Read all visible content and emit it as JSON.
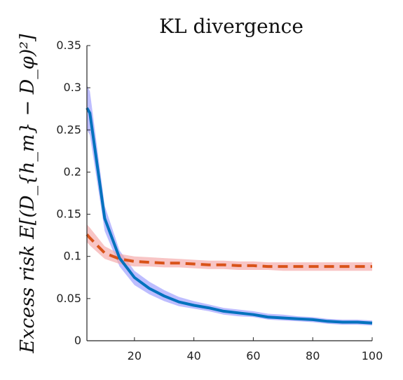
{
  "chart_data": {
    "type": "line",
    "title": "KL divergence",
    "ylabel": "Excess risk E[(D_{h_m} − D_φ)²]",
    "xlabel": "",
    "xlim": [
      4,
      100
    ],
    "ylim": [
      0,
      0.35
    ],
    "x_ticks": [
      20,
      40,
      60,
      80,
      100
    ],
    "y_ticks": [
      0,
      0.05,
      0.1,
      0.15,
      0.2,
      0.25,
      0.3,
      0.35
    ],
    "x_tick_labels": [
      "20",
      "40",
      "60",
      "80",
      "100"
    ],
    "y_tick_labels": [
      "0",
      "0.05",
      "0.1",
      "0.15",
      "0.2",
      "0.25",
      "0.3",
      "0.35"
    ],
    "grid": false,
    "legend": "none",
    "series": [
      {
        "style": "solid",
        "color": "#0072BD",
        "band_color": "#9999ff",
        "x": [
          4,
          5,
          10,
          15,
          20,
          25,
          30,
          35,
          40,
          45,
          50,
          55,
          60,
          65,
          70,
          75,
          80,
          85,
          90,
          95,
          100
        ],
        "y": [
          0.276,
          0.27,
          0.145,
          0.098,
          0.075,
          0.062,
          0.053,
          0.046,
          0.042,
          0.039,
          0.035,
          0.033,
          0.031,
          0.028,
          0.027,
          0.026,
          0.025,
          0.023,
          0.022,
          0.022,
          0.021
        ],
        "lower": [
          0.25,
          0.244,
          0.13,
          0.088,
          0.066,
          0.055,
          0.047,
          0.041,
          0.038,
          0.035,
          0.031,
          0.029,
          0.028,
          0.025,
          0.024,
          0.023,
          0.022,
          0.02,
          0.019,
          0.019,
          0.018
        ],
        "upper": [
          0.303,
          0.296,
          0.16,
          0.107,
          0.083,
          0.07,
          0.06,
          0.052,
          0.047,
          0.043,
          0.039,
          0.037,
          0.035,
          0.032,
          0.031,
          0.029,
          0.028,
          0.026,
          0.025,
          0.025,
          0.024
        ]
      },
      {
        "style": "dashed",
        "color": "#D95319",
        "band_color": "#f4a6a6",
        "x": [
          4,
          5,
          10,
          15,
          20,
          25,
          30,
          35,
          40,
          45,
          50,
          55,
          60,
          65,
          70,
          75,
          80,
          85,
          90,
          95,
          100
        ],
        "y": [
          0.126,
          0.122,
          0.104,
          0.097,
          0.094,
          0.093,
          0.092,
          0.092,
          0.091,
          0.09,
          0.09,
          0.089,
          0.089,
          0.088,
          0.088,
          0.088,
          0.088,
          0.088,
          0.088,
          0.088,
          0.088
        ],
        "lower": [
          0.117,
          0.113,
          0.097,
          0.091,
          0.088,
          0.088,
          0.087,
          0.087,
          0.086,
          0.085,
          0.085,
          0.084,
          0.084,
          0.084,
          0.083,
          0.083,
          0.083,
          0.083,
          0.083,
          0.083,
          0.083
        ],
        "upper": [
          0.138,
          0.134,
          0.112,
          0.103,
          0.1,
          0.099,
          0.098,
          0.097,
          0.096,
          0.095,
          0.095,
          0.094,
          0.094,
          0.093,
          0.093,
          0.093,
          0.093,
          0.093,
          0.093,
          0.093,
          0.093
        ]
      }
    ]
  }
}
